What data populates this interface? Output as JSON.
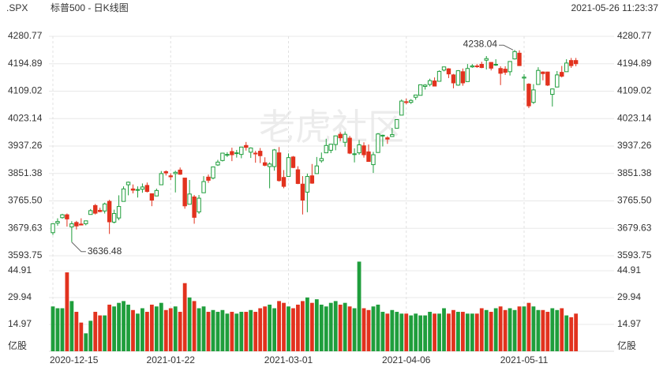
{
  "header": {
    "symbol": ".SPX",
    "title": "标普500 - 日K线图",
    "timestamp": "2021-05-26 11:23:37"
  },
  "watermark": "老虎社区",
  "chart_data": [
    {
      "type": "candlestick",
      "categories": [
        "2020-12-15",
        null,
        null,
        null,
        null,
        null,
        null,
        null,
        null,
        null,
        null,
        null,
        null,
        null,
        null,
        null,
        null,
        null,
        null,
        null,
        null,
        null,
        null,
        null,
        null,
        "2021-01-22",
        null,
        null,
        null,
        null,
        null,
        null,
        null,
        null,
        null,
        null,
        null,
        null,
        null,
        null,
        null,
        null,
        null,
        null,
        null,
        null,
        null,
        null,
        null,
        null,
        "2021-03-01",
        null,
        null,
        null,
        null,
        null,
        null,
        null,
        null,
        null,
        null,
        null,
        null,
        null,
        null,
        null,
        null,
        null,
        null,
        null,
        null,
        null,
        null,
        null,
        null,
        "2021-04-06",
        null,
        null,
        null,
        null,
        null,
        null,
        null,
        null,
        null,
        null,
        null,
        null,
        null,
        null,
        null,
        null,
        null,
        null,
        null,
        null,
        null,
        null,
        null,
        null,
        "2021-05-11",
        null,
        null,
        null,
        null,
        null,
        null,
        null,
        null,
        null,
        null,
        null
      ],
      "open": [
        3666,
        3696,
        3713,
        3722,
        3684,
        3698,
        3693,
        3694,
        3723,
        3751,
        3736,
        3734,
        3764,
        3699,
        3712,
        3764,
        3816,
        3803,
        3801,
        3802,
        3814,
        3788,
        3781,
        3816,
        3857,
        3844,
        3851,
        3862,
        3837,
        3755,
        3778,
        3731,
        3791,
        3840,
        3837,
        3878,
        3892,
        3911,
        3920,
        3916,
        3911,
        3939,
        3918,
        3915,
        3921,
        3885,
        3873,
        3873,
        3916,
        3839,
        3842,
        3903,
        3863,
        3818,
        3793,
        3844,
        3851,
        3891,
        3916,
        3924,
        3942,
        3974,
        3949,
        3962,
        3913,
        3916,
        3938,
        3919,
        3879,
        3917,
        3970,
        3963,
        3967,
        3993,
        4034,
        4076,
        4074,
        4090,
        4096,
        4124,
        4130,
        4141,
        4140,
        4175,
        4179,
        4160,
        4128,
        4170,
        4139,
        4185,
        4188,
        4193,
        4206,
        4199,
        4191,
        4180,
        4178,
        4170,
        4210,
        4228,
        4150,
        4131,
        4074,
        4130,
        4169,
        4169,
        4099,
        4122,
        4168,
        4170,
        4205,
        4205
      ],
      "high": [
        3695,
        3711,
        3725,
        3726,
        3702,
        3703,
        3711,
        3703,
        3740,
        3756,
        3744,
        3760,
        3769,
        3738,
        3783,
        3811,
        3826,
        3817,
        3811,
        3820,
        3823,
        3788,
        3804,
        3859,
        3861,
        3852,
        3860,
        3870,
        3837,
        3831,
        3784,
        3784,
        3843,
        3848,
        3872,
        3894,
        3916,
        3918,
        3932,
        3925,
        3934,
        3950,
        3933,
        3922,
        3931,
        3902,
        3886,
        3928,
        3934,
        3862,
        3914,
        3906,
        3874,
        3843,
        3851,
        3881,
        3903,
        3917,
        3960,
        3944,
        3970,
        3981,
        3983,
        3969,
        3930,
        3956,
        3949,
        3942,
        3919,
        3978,
        3973,
        3968,
        3994,
        4020,
        4083,
        4086,
        4084,
        4098,
        4129,
        4131,
        4148,
        4152,
        4174,
        4185,
        4181,
        4163,
        4175,
        4180,
        4194,
        4194,
        4194,
        4201,
        4219,
        4199,
        4209,
        4187,
        4187,
        4202,
        4238.04,
        4237,
        4162,
        4134,
        4131,
        4184,
        4171,
        4170,
        4117,
        4172,
        4188,
        4209,
        4213,
        4213
      ],
      "low": [
        3659,
        3688,
        3710,
        3685,
        3636.48,
        3676,
        3689,
        3689,
        3723,
        3723,
        3730,
        3726,
        3662,
        3695,
        3705,
        3764,
        3783,
        3789,
        3776,
        3791,
        3792,
        3749,
        3780,
        3816,
        3845,
        3831,
        3792,
        3847,
        3741,
        3755,
        3694,
        3725,
        3791,
        3822,
        3833,
        3875,
        3889,
        3903,
        3890,
        3901,
        3899,
        3923,
        3900,
        3885,
        3884,
        3874,
        3805,
        3860,
        3826,
        3805,
        3842,
        3868,
        3818,
        3723,
        3730,
        3819,
        3851,
        3885,
        3916,
        3915,
        3924,
        3953,
        3935,
        3912,
        3886,
        3910,
        3901,
        3889,
        3853,
        3917,
        3936,
        3944,
        3967,
        3993,
        4034,
        4068,
        4069,
        4082,
        4096,
        4114,
        4124,
        4124,
        4140,
        4171,
        4150,
        4118,
        4126,
        4126,
        4139,
        4182,
        4182,
        4181,
        4177,
        4174,
        4188,
        4128,
        4160,
        4158,
        4208,
        4188,
        4111,
        4056,
        4069,
        4130,
        4143,
        4125,
        4061,
        4122,
        4152,
        4170,
        4182,
        4187
      ],
      "close": [
        3694,
        3701,
        3722,
        3709,
        3694,
        3687,
        3690,
        3703,
        3735,
        3727,
        3732,
        3756,
        3700,
        3726,
        3748,
        3803,
        3824,
        3799,
        3801,
        3809,
        3795,
        3768,
        3798,
        3851,
        3853,
        3841,
        3855,
        3849,
        3750,
        3787,
        3714,
        3774,
        3826,
        3830,
        3872,
        3887,
        3915,
        3911,
        3910,
        3916,
        3934,
        3933,
        3931,
        3913,
        3907,
        3877,
        3881,
        3925,
        3829,
        3811,
        3901,
        3870,
        3820,
        3768,
        3842,
        3821,
        3875,
        3898,
        3939,
        3943,
        3969,
        3963,
        3974,
        3915,
        3913,
        3941,
        3910,
        3889,
        3910,
        3975,
        3971,
        3959,
        3973,
        4020,
        4078,
        4074,
        4080,
        4097,
        4129,
        4128,
        4142,
        4125,
        4171,
        4185,
        4163,
        4135,
        4173,
        4135,
        4180,
        4188,
        4187,
        4183,
        4211,
        4181,
        4193,
        4165,
        4168,
        4202,
        4233,
        4189,
        4153,
        4063,
        4113,
        4174,
        4164,
        4128,
        4116,
        4160,
        4156,
        4197,
        4189,
        4195
      ],
      "ylim": [
        3593.75,
        4280.77
      ],
      "yticks": [
        4280.77,
        4194.89,
        4109.02,
        4023.14,
        3937.26,
        3851.38,
        {
          "value": 3765.5,
          "label": "3765.50"
        },
        3679.63,
        3593.75
      ],
      "up_color": "#1f9e3c",
      "down_color": "#e2321e",
      "grid": true
    },
    {
      "type": "bar",
      "unit": "亿股",
      "values": [
        25,
        24,
        24,
        44,
        28,
        22,
        16,
        10,
        17,
        22,
        20,
        20,
        26,
        25,
        27,
        28,
        26,
        23,
        21,
        24,
        22,
        26,
        25,
        27,
        23,
        24,
        25,
        22,
        38,
        30,
        28,
        24,
        25,
        22,
        23,
        22,
        23,
        21,
        22,
        21,
        22,
        22,
        23,
        22,
        24,
        25,
        26,
        24,
        28,
        27,
        25,
        24,
        26,
        28,
        30,
        27,
        29,
        26,
        25,
        27,
        28,
        26,
        27,
        25,
        24,
        50,
        24,
        23,
        25,
        26,
        22,
        21,
        23,
        22,
        21,
        21,
        20,
        21,
        20,
        20,
        22,
        21,
        21,
        24,
        21,
        23,
        22,
        22,
        21,
        21,
        21,
        24,
        23,
        22,
        24,
        25,
        23,
        24,
        23,
        25,
        25,
        27,
        25,
        23,
        23,
        22,
        24,
        23,
        24,
        20,
        19,
        21
      ],
      "ylim": [
        0,
        44.91
      ],
      "yticks": [
        44.91,
        29.94,
        14.97
      ],
      "grid": true
    }
  ]
}
